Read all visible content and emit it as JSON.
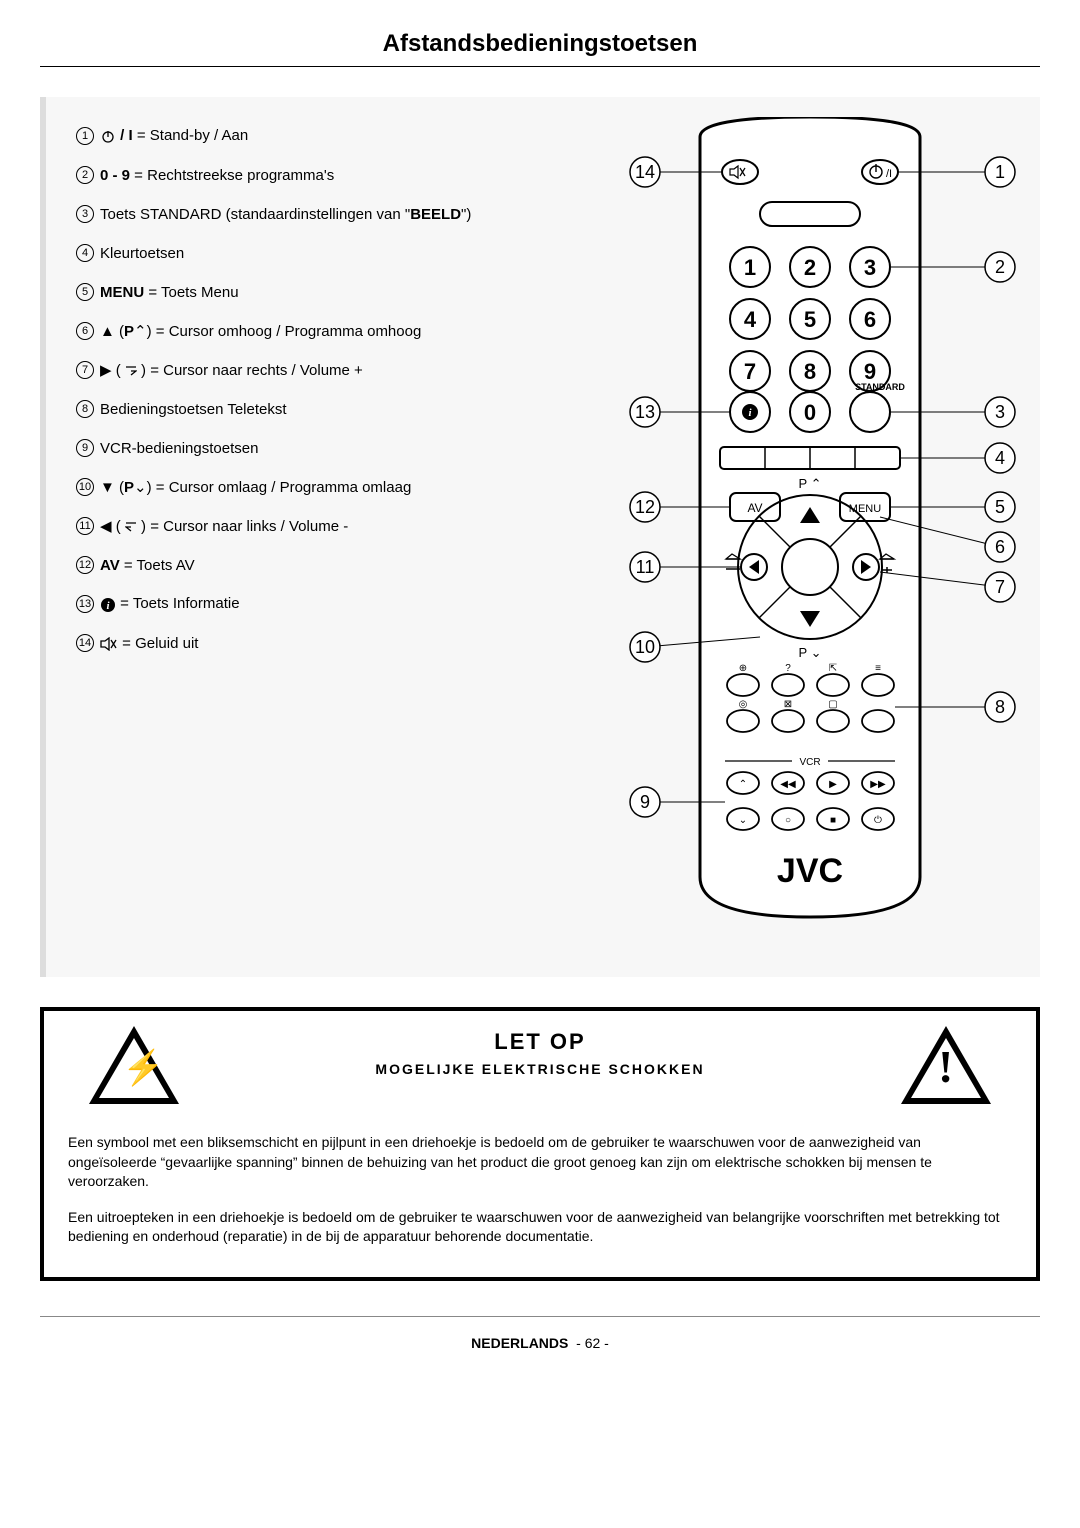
{
  "title": "Afstandsbedieningstoetsen",
  "legend": [
    {
      "n": "1",
      "html": "<svg class='icon-inline' width='16' height='16'><circle cx='8' cy='8' r='5' fill='none' stroke='#000' stroke-width='1.3'/><line x1='8' y1='2' x2='8' y2='8' stroke='#000' stroke-width='1.3'/></svg> <strong>/ I</strong> = Stand-by / Aan"
    },
    {
      "n": "2",
      "html": "<strong>0 - 9</strong> = Rechtstreekse programma's"
    },
    {
      "n": "3",
      "html": "Toets STANDARD (standaardinstellingen van \"<strong>BEELD</strong>\")"
    },
    {
      "n": "4",
      "html": "Kleurtoetsen"
    },
    {
      "n": "5",
      "html": "<strong>MENU</strong> = Toets Menu"
    },
    {
      "n": "6",
      "html": "▲ (<strong>P</strong>⌃) = Cursor omhoog / Programma omhoog"
    },
    {
      "n": "7",
      "html": "▶ ( <svg class='icon-inline' width='12' height='14'><path d='M1 3 L11 3 M6 7 L11 7 L6 11' stroke='#000' fill='none' stroke-width='1.3'/></svg> ) = Cursor naar rechts / Volume +"
    },
    {
      "n": "8",
      "html": "Bedieningstoetsen Teletekst"
    },
    {
      "n": "9",
      "html": "VCR-bedieningstoetsen"
    },
    {
      "n": "10",
      "html": "▼ (<strong>P</strong>⌄) = Cursor omlaag / Programma omlaag"
    },
    {
      "n": "11",
      "html": "◀ ( <svg class='icon-inline' width='12' height='14'><path d='M11 3 L1 3 M6 7 L1 7 L6 11' stroke='#000' fill='none' stroke-width='1.3'/></svg> ) = Cursor naar links / Volume -"
    },
    {
      "n": "12",
      "html": "<strong>AV</strong> = Toets AV"
    },
    {
      "n": "13",
      "html": "<svg class='icon-inline' width='16' height='16'><circle cx='8' cy='8' r='7' fill='#000'/><text x='8' y='12' text-anchor='middle' font-size='11' font-family='serif' font-weight='bold' fill='#fff' font-style='italic'>i</text></svg> = Toets Informatie"
    },
    {
      "n": "14",
      "html": "<svg class='icon-inline' width='18' height='14'><path d='M1 4 L5 4 L9 1 L9 13 L5 10 L1 10 Z' fill='none' stroke='#000' stroke-width='1.3'/><line x1='11' y1='3' x2='16' y2='11' stroke='#000' stroke-width='1.3'/><line x1='16' y1='3' x2='11' y2='11' stroke='#000' stroke-width='1.3'/></svg> = Geluid uit"
    }
  ],
  "remote": {
    "brand": "JVC",
    "callouts_left": [
      "14",
      "13",
      "12",
      "11",
      "10",
      "9"
    ],
    "callouts_right": [
      "1",
      "2",
      "3",
      "4",
      "5",
      "6",
      "7",
      "8"
    ],
    "keypad": [
      [
        "1",
        "2",
        "3"
      ],
      [
        "4",
        "5",
        "6"
      ],
      [
        "7",
        "8",
        "9"
      ]
    ],
    "standard_label": "STANDARD",
    "p_up": "P",
    "p_dn": "P",
    "av": "AV",
    "menu": "MENU",
    "vcr": "VCR"
  },
  "warning": {
    "title": "LET OP",
    "subtitle": "MOGELIJKE ELEKTRISCHE SCHOKKEN",
    "para1": "Een symbool met een bliksemschicht en pijlpunt in een driehoekje is bedoeld om de gebruiker te waarschuwen voor de aanwezigheid van ongeïsoleerde “gevaarlijke spanning” binnen de behuizing van het product die groot genoeg kan zijn om elektrische schokken bij mensen te veroorzaken.",
    "para2": "Een uitroepteken in een driehoekje is bedoeld om de gebruiker te waarschuwen voor de aanwezigheid van belangrijke voorschriften met betrekking tot bediening en onderhoud (reparatie) in de bij de apparatuur behorende documentatie."
  },
  "footer": {
    "lang": "NEDERLANDS",
    "page": "- 62 -"
  }
}
